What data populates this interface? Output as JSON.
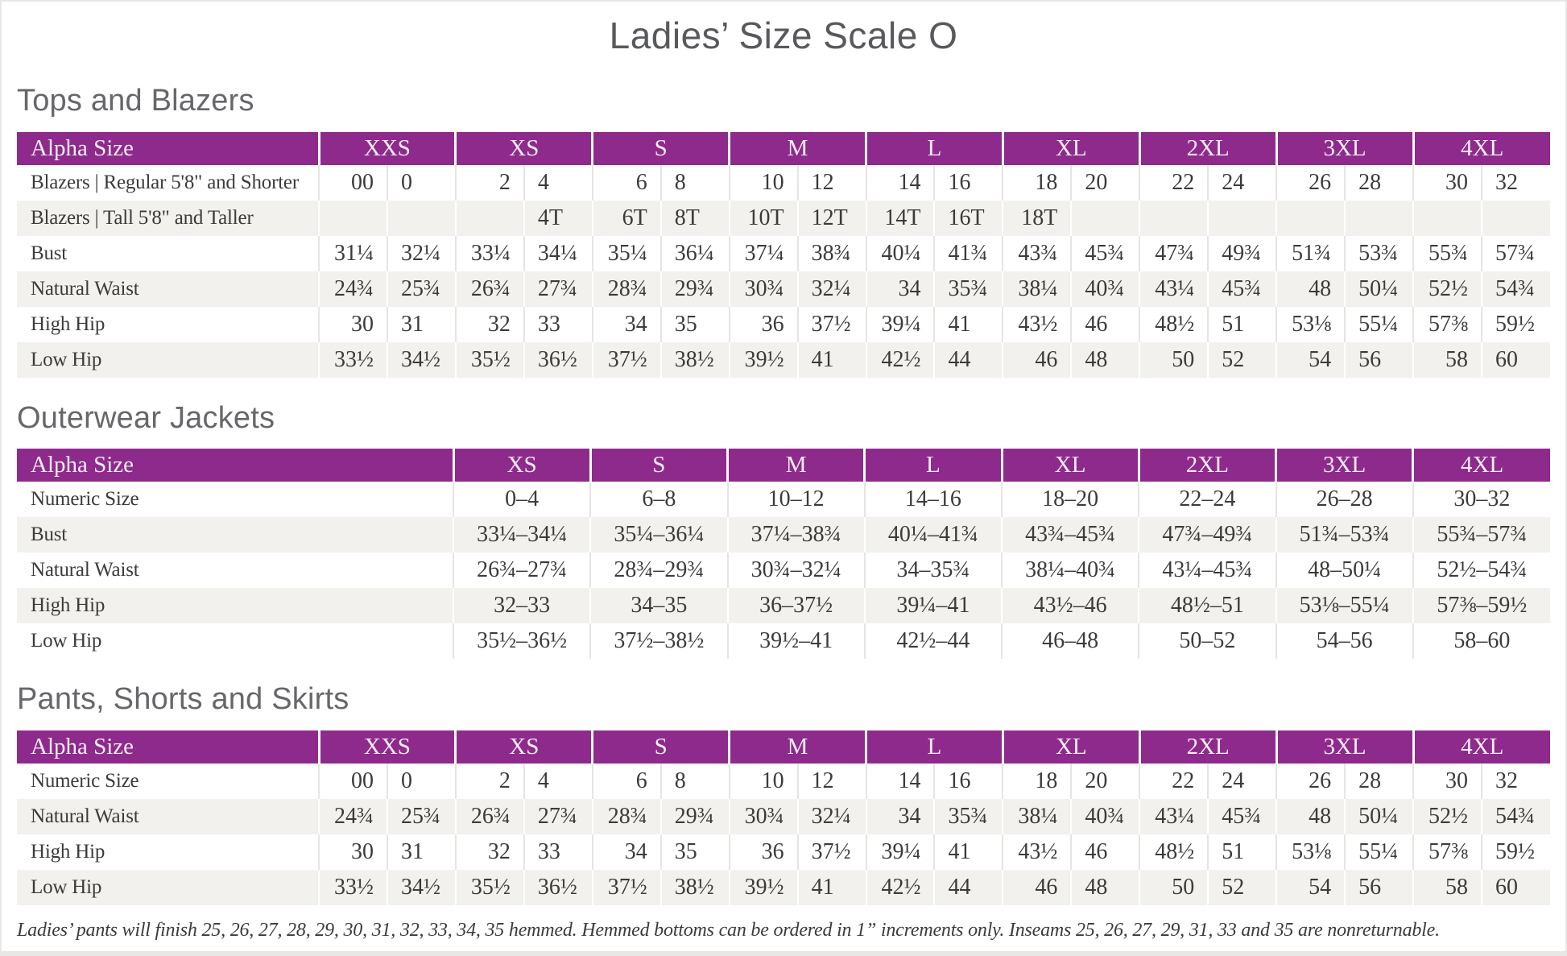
{
  "page": {
    "title": "Ladies’ Size Scale O",
    "footnote": "Ladies’ pants will finish 25, 26, 27, 28, 29, 30, 31, 32, 33, 34, 35 hemmed. Hemmed bottoms can be ordered in 1” increments only. Inseams 25, 26, 27, 29, 31, 33 and 35 are nonreturnable."
  },
  "colors": {
    "accent_purple": "#8e2a8c",
    "row_stripe": "#f2f1ee",
    "body_text": "#3c3b39",
    "heading_gray": "#66676a",
    "page_background": "#ffffff",
    "outer_edge": "#e8e7e5"
  },
  "tables": [
    {
      "section": "Tops and Blazers",
      "layout": "paired",
      "label_header": "Alpha Size",
      "size_headers": [
        "XXS",
        "XS",
        "S",
        "M",
        "L",
        "XL",
        "2XL",
        "3XL",
        "4XL"
      ],
      "rows": [
        {
          "label": "Blazers  |  Regular 5'8\" and Shorter",
          "pairs": [
            [
              "00",
              "0"
            ],
            [
              "2",
              "4"
            ],
            [
              "6",
              "8"
            ],
            [
              "10",
              "12"
            ],
            [
              "14",
              "16"
            ],
            [
              "18",
              "20"
            ],
            [
              "22",
              "24"
            ],
            [
              "26",
              "28"
            ],
            [
              "30",
              "32"
            ]
          ]
        },
        {
          "label": "Blazers  |  Tall 5'8\" and Taller",
          "pairs": [
            [
              "",
              ""
            ],
            [
              "",
              "4T"
            ],
            [
              "6T",
              "8T"
            ],
            [
              "10T",
              "12T"
            ],
            [
              "14T",
              "16T"
            ],
            [
              "18T",
              ""
            ],
            [
              "",
              ""
            ],
            [
              "",
              ""
            ],
            [
              "",
              ""
            ]
          ]
        },
        {
          "label": "Bust",
          "pairs": [
            [
              "31¼",
              "32¼"
            ],
            [
              "33¼",
              "34¼"
            ],
            [
              "35¼",
              "36¼"
            ],
            [
              "37¼",
              "38¾"
            ],
            [
              "40¼",
              "41¾"
            ],
            [
              "43¾",
              "45¾"
            ],
            [
              "47¾",
              "49¾"
            ],
            [
              "51¾",
              "53¾"
            ],
            [
              "55¾",
              "57¾"
            ]
          ]
        },
        {
          "label": "Natural Waist",
          "pairs": [
            [
              "24¾",
              "25¾"
            ],
            [
              "26¾",
              "27¾"
            ],
            [
              "28¾",
              "29¾"
            ],
            [
              "30¾",
              "32¼"
            ],
            [
              "34",
              "35¾"
            ],
            [
              "38¼",
              "40¾"
            ],
            [
              "43¼",
              "45¾"
            ],
            [
              "48",
              "50¼"
            ],
            [
              "52½",
              "54¾"
            ]
          ]
        },
        {
          "label": "High Hip",
          "pairs": [
            [
              "30",
              "31"
            ],
            [
              "32",
              "33"
            ],
            [
              "34",
              "35"
            ],
            [
              "36",
              "37½"
            ],
            [
              "39¼",
              "41"
            ],
            [
              "43½",
              "46"
            ],
            [
              "48½",
              "51"
            ],
            [
              "53⅛",
              "55¼"
            ],
            [
              "57⅜",
              "59½"
            ]
          ]
        },
        {
          "label": "Low Hip",
          "pairs": [
            [
              "33½",
              "34½"
            ],
            [
              "35½",
              "36½"
            ],
            [
              "37½",
              "38½"
            ],
            [
              "39½",
              "41"
            ],
            [
              "42½",
              "44"
            ],
            [
              "46",
              "48"
            ],
            [
              "50",
              "52"
            ],
            [
              "54",
              "56"
            ],
            [
              "58",
              "60"
            ]
          ]
        }
      ]
    },
    {
      "section": "Outerwear Jackets",
      "layout": "single",
      "label_header": "Alpha Size",
      "size_headers": [
        "XS",
        "S",
        "M",
        "L",
        "XL",
        "2XL",
        "3XL",
        "4XL"
      ],
      "rows": [
        {
          "label": "Numeric Size",
          "values": [
            "0–4",
            "6–8",
            "10–12",
            "14–16",
            "18–20",
            "22–24",
            "26–28",
            "30–32"
          ]
        },
        {
          "label": "Bust",
          "values": [
            "33¼–34¼",
            "35¼–36¼",
            "37¼–38¾",
            "40¼–41¾",
            "43¾–45¾",
            "47¾–49¾",
            "51¾–53¾",
            "55¾–57¾"
          ]
        },
        {
          "label": "Natural Waist",
          "values": [
            "26¾–27¾",
            "28¾–29¾",
            "30¾–32¼",
            "34–35¾",
            "38¼–40¾",
            "43¼–45¾",
            "48–50¼",
            "52½–54¾"
          ]
        },
        {
          "label": "High Hip",
          "values": [
            "32–33",
            "34–35",
            "36–37½",
            "39¼–41",
            "43½–46",
            "48½–51",
            "53⅛–55¼",
            "57⅜–59½"
          ]
        },
        {
          "label": "Low Hip",
          "values": [
            "35½–36½",
            "37½–38½",
            "39½–41",
            "42½–44",
            "46–48",
            "50–52",
            "54–56",
            "58–60"
          ]
        }
      ]
    },
    {
      "section": "Pants, Shorts and Skirts",
      "layout": "paired",
      "label_header": "Alpha Size",
      "size_headers": [
        "XXS",
        "XS",
        "S",
        "M",
        "L",
        "XL",
        "2XL",
        "3XL",
        "4XL"
      ],
      "rows": [
        {
          "label": "Numeric Size",
          "pairs": [
            [
              "00",
              "0"
            ],
            [
              "2",
              "4"
            ],
            [
              "6",
              "8"
            ],
            [
              "10",
              "12"
            ],
            [
              "14",
              "16"
            ],
            [
              "18",
              "20"
            ],
            [
              "22",
              "24"
            ],
            [
              "26",
              "28"
            ],
            [
              "30",
              "32"
            ]
          ]
        },
        {
          "label": "Natural Waist",
          "pairs": [
            [
              "24¾",
              "25¾"
            ],
            [
              "26¾",
              "27¾"
            ],
            [
              "28¾",
              "29¾"
            ],
            [
              "30¾",
              "32¼"
            ],
            [
              "34",
              "35¾"
            ],
            [
              "38¼",
              "40¾"
            ],
            [
              "43¼",
              "45¾"
            ],
            [
              "48",
              "50¼"
            ],
            [
              "52½",
              "54¾"
            ]
          ]
        },
        {
          "label": "High Hip",
          "pairs": [
            [
              "30",
              "31"
            ],
            [
              "32",
              "33"
            ],
            [
              "34",
              "35"
            ],
            [
              "36",
              "37½"
            ],
            [
              "39¼",
              "41"
            ],
            [
              "43½",
              "46"
            ],
            [
              "48½",
              "51"
            ],
            [
              "53⅛",
              "55¼"
            ],
            [
              "57⅜",
              "59½"
            ]
          ]
        },
        {
          "label": "Low Hip",
          "pairs": [
            [
              "33½",
              "34½"
            ],
            [
              "35½",
              "36½"
            ],
            [
              "37½",
              "38½"
            ],
            [
              "39½",
              "41"
            ],
            [
              "42½",
              "44"
            ],
            [
              "46",
              "48"
            ],
            [
              "50",
              "52"
            ],
            [
              "54",
              "56"
            ],
            [
              "58",
              "60"
            ]
          ]
        }
      ]
    }
  ]
}
